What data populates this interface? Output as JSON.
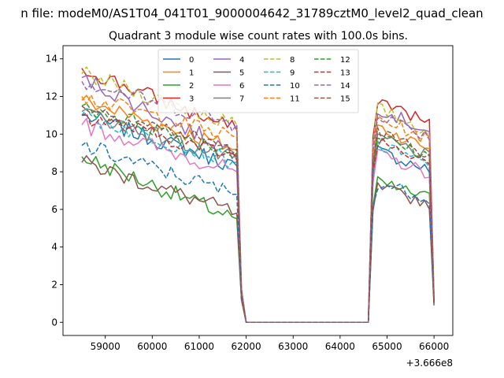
{
  "chart_data": {
    "type": "line",
    "suptitle": "n file: modeM0/AS1T04_041T01_9000004642_31789cztM0_level2_quad_clean",
    "title": "Quadrant 3 module wise count rates with 100.0s bins.",
    "xlabel": "",
    "ylabel": "",
    "x_offset_label": "+3.666e8",
    "xlim": [
      58100,
      66400
    ],
    "ylim": [
      -0.7,
      14.7
    ],
    "xticks": [
      59000,
      60000,
      61000,
      62000,
      63000,
      64000,
      65000,
      66000
    ],
    "xtick_labels": [
      "59000",
      "60000",
      "61000",
      "62000",
      "63000",
      "64000",
      "65000",
      "66000"
    ],
    "yticks": [
      0,
      2,
      4,
      6,
      8,
      10,
      12,
      14
    ],
    "ytick_labels": [
      "0",
      "2",
      "4",
      "6",
      "8",
      "10",
      "12",
      "14"
    ],
    "grid": false,
    "legend_position": "top-center",
    "legend_columns": 4,
    "segments_x": {
      "segment_1": [
        58500,
        61800
      ],
      "gap_x": [
        61900,
        62000,
        64600
      ],
      "segment_2": [
        64700,
        66000
      ]
    },
    "series": [
      {
        "name": "0",
        "color": "#1f77b4",
        "dash": "solid",
        "seg1_start": 11.0,
        "seg1_end": 8.3,
        "gap_values": [
          1.5,
          0.0,
          0.0
        ],
        "seg2_start": 9.2,
        "seg2_end": 1.0
      },
      {
        "name": "1",
        "color": "#ff7f0e",
        "dash": "solid",
        "seg1_start": 11.8,
        "seg1_end": 9.2,
        "gap_values": [
          1.6,
          0.0,
          0.0
        ],
        "seg2_start": 10.5,
        "seg2_end": 1.1
      },
      {
        "name": "2",
        "color": "#2ca02c",
        "dash": "solid",
        "seg1_start": 8.8,
        "seg1_end": 5.5,
        "gap_values": [
          1.2,
          0.0,
          0.0
        ],
        "seg2_start": 7.5,
        "seg2_end": 1.0
      },
      {
        "name": "3",
        "color": "#d62728",
        "dash": "solid",
        "seg1_start": 13.5,
        "seg1_end": 10.2,
        "gap_values": [
          1.8,
          0.0,
          0.0
        ],
        "seg2_start": 12.0,
        "seg2_end": 1.4
      },
      {
        "name": "4",
        "color": "#9467bd",
        "dash": "solid",
        "seg1_start": 13.0,
        "seg1_end": 9.0,
        "gap_values": [
          1.7,
          0.0,
          0.0
        ],
        "seg2_start": 11.5,
        "seg2_end": 1.2
      },
      {
        "name": "5",
        "color": "#8c564b",
        "dash": "solid",
        "seg1_start": 8.5,
        "seg1_end": 5.8,
        "gap_values": [
          1.2,
          0.0,
          0.0
        ],
        "seg2_start": 7.2,
        "seg2_end": 0.9
      },
      {
        "name": "6",
        "color": "#e377c2",
        "dash": "solid",
        "seg1_start": 10.5,
        "seg1_end": 8.0,
        "gap_values": [
          1.4,
          0.0,
          0.0
        ],
        "seg2_start": 9.0,
        "seg2_end": 1.0
      },
      {
        "name": "7",
        "color": "#7f7f7f",
        "dash": "solid",
        "seg1_start": 11.2,
        "seg1_end": 8.6,
        "gap_values": [
          1.5,
          0.0,
          0.0
        ],
        "seg2_start": 10.0,
        "seg2_end": 1.0
      },
      {
        "name": "8",
        "color": "#bcbd22",
        "dash": "dashed",
        "seg1_start": 13.2,
        "seg1_end": 10.5,
        "gap_values": [
          1.8,
          0.0,
          0.0
        ],
        "seg2_start": 11.5,
        "seg2_end": 1.3
      },
      {
        "name": "9",
        "color": "#17becf",
        "dash": "dashed",
        "seg1_start": 11.0,
        "seg1_end": 8.5,
        "gap_values": [
          1.5,
          0.0,
          0.0
        ],
        "seg2_start": 9.5,
        "seg2_end": 1.0
      },
      {
        "name": "10",
        "color": "#1f77b4",
        "dash": "dashed",
        "seg1_start": 9.4,
        "seg1_end": 6.8,
        "gap_values": [
          1.3,
          0.0,
          0.0
        ],
        "seg2_start": 7.5,
        "seg2_end": 1.0
      },
      {
        "name": "11",
        "color": "#ff7f0e",
        "dash": "dashed",
        "seg1_start": 12.0,
        "seg1_end": 9.8,
        "gap_values": [
          1.6,
          0.0,
          0.0
        ],
        "seg2_start": 11.0,
        "seg2_end": 1.2
      },
      {
        "name": "12",
        "color": "#2ca02c",
        "dash": "dashed",
        "seg1_start": 11.5,
        "seg1_end": 9.0,
        "gap_values": [
          1.5,
          0.0,
          0.0
        ],
        "seg2_start": 10.0,
        "seg2_end": 1.1
      },
      {
        "name": "13",
        "color": "#d62728",
        "dash": "dashed",
        "seg1_start": 11.0,
        "seg1_end": 8.8,
        "gap_values": [
          1.5,
          0.0,
          0.0
        ],
        "seg2_start": 9.8,
        "seg2_end": 1.1
      },
      {
        "name": "14",
        "color": "#9467bd",
        "dash": "dashed",
        "seg1_start": 12.8,
        "seg1_end": 10.5,
        "gap_values": [
          1.7,
          0.0,
          0.0
        ],
        "seg2_start": 11.2,
        "seg2_end": 1.3
      },
      {
        "name": "15",
        "color": "#8c564b",
        "dash": "dashed",
        "seg1_start": 11.5,
        "seg1_end": 9.2,
        "gap_values": [
          1.5,
          0.0,
          0.0
        ],
        "seg2_start": 10.2,
        "seg2_end": 1.1
      }
    ]
  }
}
